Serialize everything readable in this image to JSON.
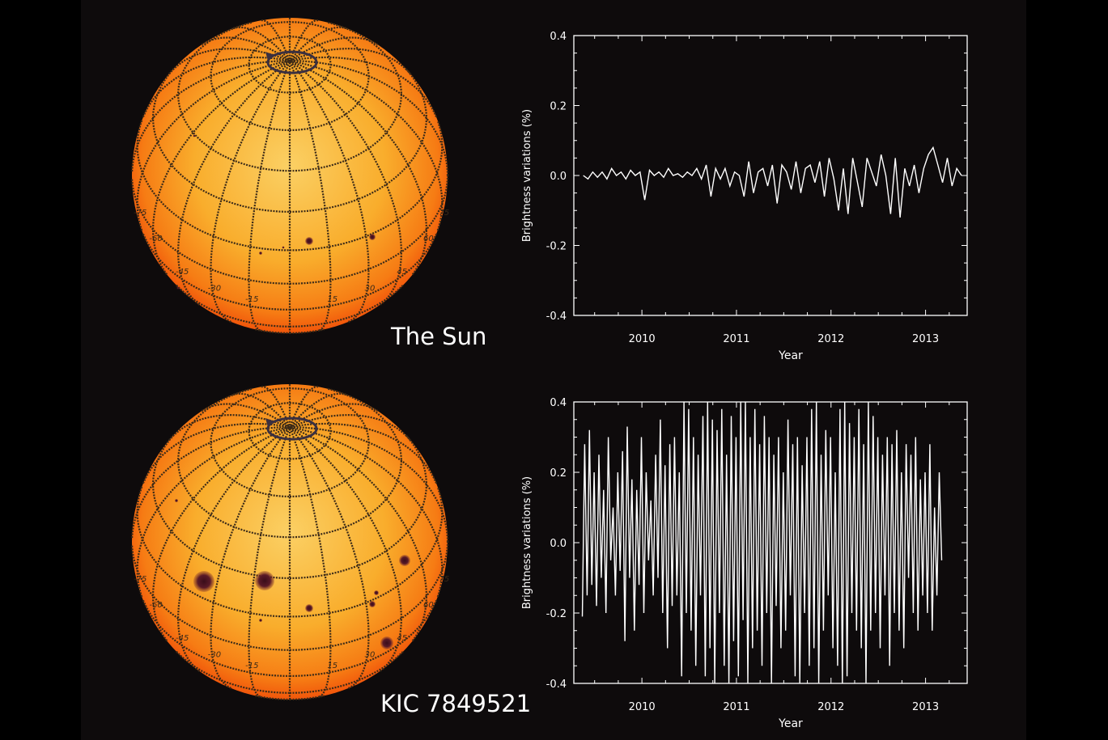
{
  "colors": {
    "background": "#0e0b0c",
    "sphere_center": "#fbbf3e",
    "sphere_edge": "#f24a0a",
    "grid": "#3b2a18",
    "spot": "#4a1522",
    "line": "#ffffff"
  },
  "stars": [
    {
      "name": "The Sun",
      "lat_labels": [
        "-75",
        "-60",
        "-45",
        "-30",
        "-15",
        "15",
        "30",
        "45",
        "60",
        "75"
      ]
    },
    {
      "name": "KIC 7849521",
      "lat_labels": [
        "-75",
        "-60",
        "-45",
        "-30",
        "-15",
        "15",
        "30",
        "45",
        "60",
        "75"
      ]
    }
  ],
  "chart_data": [
    {
      "type": "line",
      "title": "",
      "xlabel": "Year",
      "ylabel": "Brightness variations (%)",
      "xlim": [
        2009.28,
        2013.44
      ],
      "ylim": [
        -0.4,
        0.4
      ],
      "xticks": [
        "2010",
        "2011",
        "2012",
        "2013"
      ],
      "yticks": [
        "0.4",
        "0.2",
        "0.0",
        "-0.2",
        "-0.4"
      ],
      "series": [
        {
          "name": "The Sun",
          "x_start": 2009.38,
          "x_step": 0.05,
          "values": [
            0.0,
            -0.01,
            0.01,
            -0.005,
            0.01,
            -0.01,
            0.02,
            0.0,
            0.01,
            -0.01,
            0.015,
            0.0,
            0.01,
            -0.07,
            0.015,
            0.0,
            0.01,
            -0.005,
            0.02,
            0.0,
            0.005,
            -0.005,
            0.01,
            0.0,
            0.02,
            -0.01,
            0.03,
            -0.06,
            0.02,
            -0.01,
            0.02,
            -0.03,
            0.01,
            0.0,
            -0.06,
            0.04,
            -0.05,
            0.01,
            0.02,
            -0.03,
            0.03,
            -0.08,
            0.03,
            0.01,
            -0.04,
            0.04,
            -0.05,
            0.02,
            0.03,
            -0.02,
            0.04,
            -0.06,
            0.05,
            -0.01,
            -0.1,
            0.02,
            -0.11,
            0.05,
            -0.02,
            -0.09,
            0.05,
            0.01,
            -0.03,
            0.06,
            0.0,
            -0.11,
            0.05,
            -0.12,
            0.02,
            -0.03,
            0.03,
            -0.05,
            0.02,
            0.06,
            0.08,
            0.03,
            -0.02,
            0.05,
            -0.03,
            0.02,
            0.0
          ]
        }
      ]
    },
    {
      "type": "line",
      "title": "",
      "xlabel": "Year",
      "ylabel": "Brightness variations (%)",
      "xlim": [
        2009.28,
        2013.44
      ],
      "ylim": [
        -0.4,
        0.4
      ],
      "xticks": [
        "2010",
        "2011",
        "2012",
        "2013"
      ],
      "yticks": [
        "0.4",
        "0.2",
        "0.0",
        "-0.2",
        "-0.4"
      ],
      "series": [
        {
          "name": "KIC 7849521",
          "x_start": 2009.37,
          "x_step": 0.025,
          "values": [
            -0.21,
            0.28,
            -0.15,
            0.32,
            -0.12,
            0.2,
            -0.18,
            0.25,
            -0.1,
            0.15,
            -0.2,
            0.3,
            -0.05,
            0.1,
            -0.15,
            0.2,
            -0.08,
            0.26,
            -0.28,
            0.33,
            -0.1,
            0.18,
            -0.25,
            0.15,
            -0.12,
            0.3,
            -0.2,
            0.2,
            -0.05,
            0.12,
            -0.15,
            0.25,
            -0.1,
            0.35,
            -0.2,
            0.22,
            -0.3,
            0.28,
            -0.18,
            0.3,
            -0.15,
            0.2,
            -0.38,
            0.4,
            -0.2,
            0.38,
            -0.25,
            0.3,
            -0.35,
            0.25,
            -0.15,
            0.36,
            -0.38,
            0.4,
            -0.3,
            0.35,
            -0.4,
            0.32,
            -0.2,
            0.38,
            -0.35,
            0.25,
            -0.4,
            0.36,
            -0.28,
            0.3,
            -0.38,
            0.4,
            -0.22,
            0.4,
            -0.4,
            0.3,
            -0.3,
            0.38,
            -0.25,
            0.28,
            -0.35,
            0.36,
            -0.2,
            0.3,
            -0.4,
            0.25,
            -0.18,
            0.3,
            -0.3,
            0.2,
            -0.25,
            0.35,
            -0.15,
            0.28,
            -0.38,
            0.3,
            -0.4,
            0.22,
            -0.2,
            0.3,
            -0.35,
            0.38,
            -0.3,
            0.4,
            -0.4,
            0.25,
            -0.25,
            0.32,
            -0.15,
            0.3,
            -0.3,
            0.2,
            -0.35,
            0.38,
            -0.4,
            0.4,
            -0.38,
            0.34,
            -0.2,
            0.3,
            -0.25,
            0.38,
            -0.3,
            0.28,
            -0.4,
            0.4,
            -0.25,
            0.36,
            -0.2,
            0.3,
            -0.3,
            0.25,
            -0.15,
            0.3,
            -0.35,
            0.28,
            -0.2,
            0.32,
            -0.25,
            0.2,
            -0.3,
            0.28,
            -0.1,
            0.25,
            -0.2,
            0.3,
            -0.25,
            0.18,
            -0.15,
            0.2,
            -0.2,
            0.28,
            -0.25,
            0.1,
            -0.15,
            0.2,
            -0.05
          ]
        }
      ]
    }
  ]
}
